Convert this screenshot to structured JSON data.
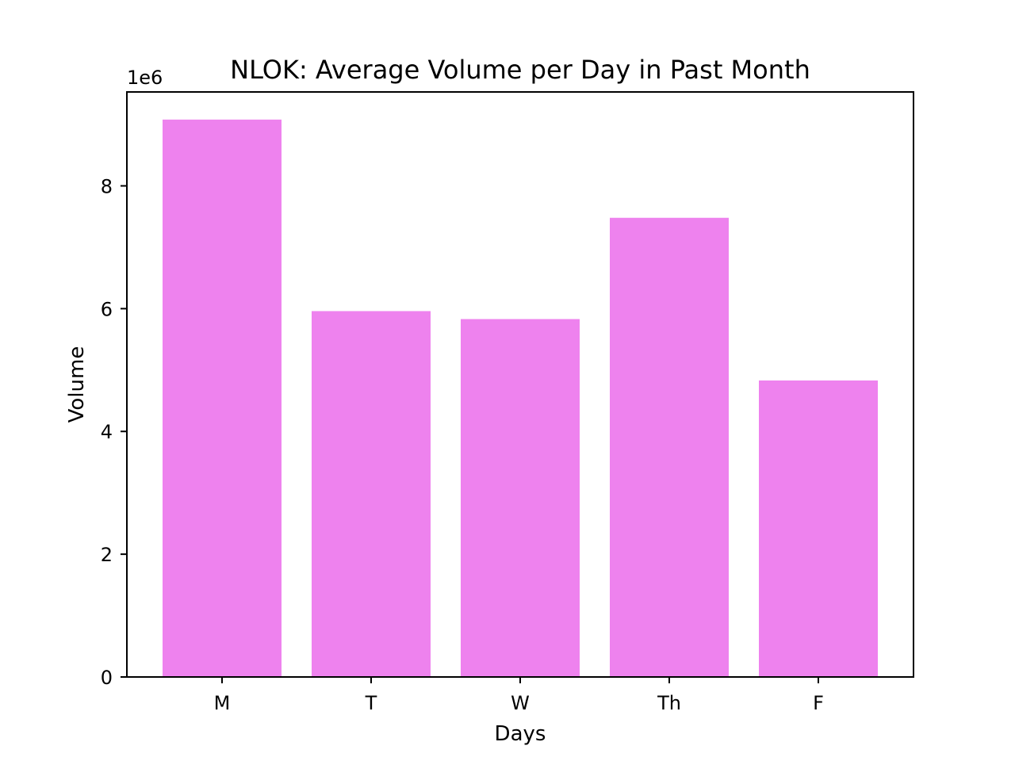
{
  "chart_data": {
    "type": "bar",
    "title": "NLOK: Average Volume per Day in Past Month",
    "xlabel": "Days",
    "ylabel": "Volume",
    "categories": [
      "M",
      "T",
      "W",
      "Th",
      "F"
    ],
    "values": [
      9080000,
      5960000,
      5830000,
      7480000,
      4830000
    ],
    "ylim": [
      0,
      9530000
    ],
    "yticks": [
      0,
      2000000,
      4000000,
      6000000,
      8000000
    ],
    "ytick_labels": [
      "0",
      "2",
      "4",
      "6",
      "8"
    ],
    "y_offset_label": "1e6",
    "bar_color": "#ee82ee",
    "grid": false,
    "legend": "none"
  }
}
